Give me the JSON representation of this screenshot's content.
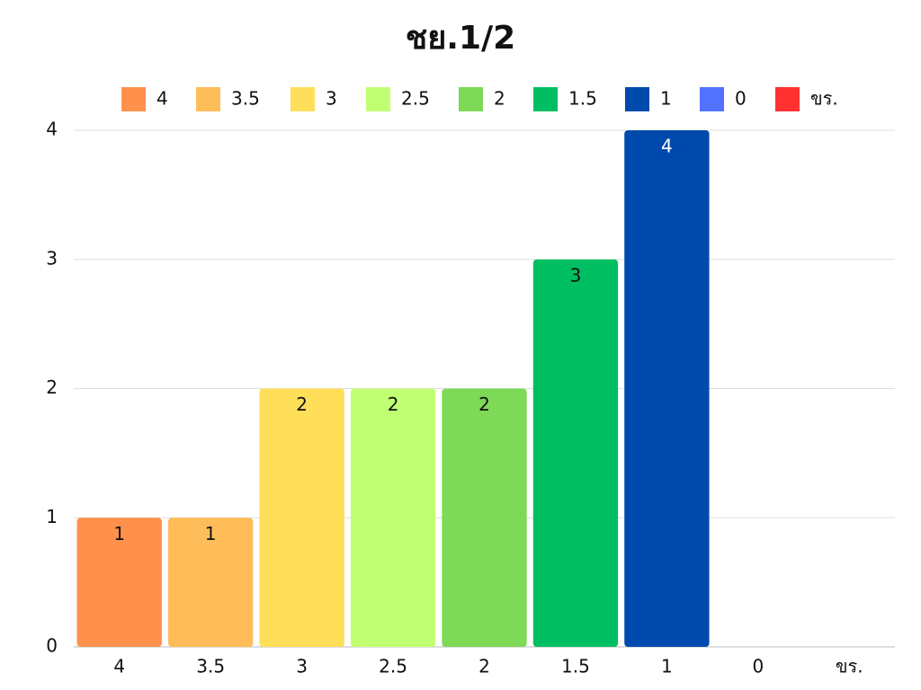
{
  "chart_data": {
    "type": "bar",
    "title": "ชย.1/2",
    "categories": [
      "4",
      "3.5",
      "3",
      "2.5",
      "2",
      "1.5",
      "1",
      "0",
      "ขร."
    ],
    "values": [
      1,
      1,
      2,
      2,
      2,
      3,
      4,
      0,
      0
    ],
    "colors": [
      "#ff914d",
      "#ffbd59",
      "#ffde59",
      "#c1ff72",
      "#7ed957",
      "#00bf63",
      "#004aad",
      "#5271ff",
      "#ff3131"
    ],
    "ylim": [
      0,
      4
    ],
    "yticks": [
      0,
      1,
      2,
      3,
      4
    ],
    "grid": true,
    "legend": "top"
  }
}
